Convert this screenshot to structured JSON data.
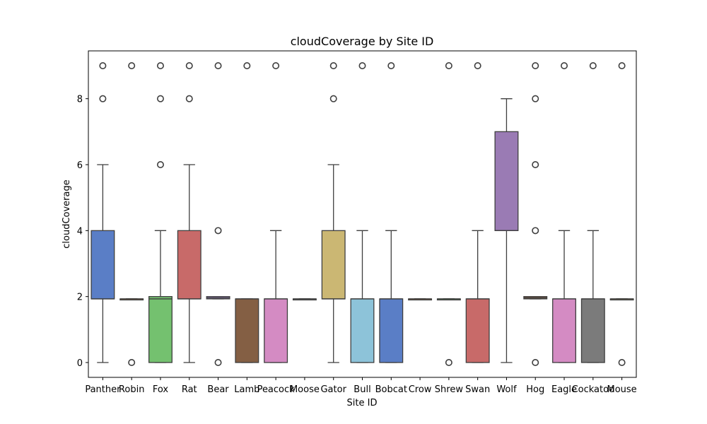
{
  "chart_data": {
    "type": "box",
    "title": "cloudCoverage by Site ID",
    "xlabel": "Site ID",
    "ylabel": "cloudCoverage",
    "ylim": [
      -0.45,
      9.45
    ],
    "yticks": [
      0,
      2,
      4,
      6,
      8
    ],
    "legend": "none",
    "grid": false,
    "categories": [
      "Panther",
      "Robin",
      "Fox",
      "Rat",
      "Bear",
      "Lamb",
      "Peacock",
      "Moose",
      "Gator",
      "Bull",
      "Bobcat",
      "Crow",
      "Shrew",
      "Swan",
      "Wolf",
      "Hog",
      "Eagle",
      "Cockatoo",
      "Mouse"
    ],
    "boxes": [
      {
        "category": "Panther",
        "min": 0,
        "q1": 1.93,
        "median": 1.93,
        "q3": 4,
        "max": 6,
        "outliers": [
          8,
          9
        ],
        "color": "#5a7ec6"
      },
      {
        "category": "Robin",
        "min": 1.93,
        "q1": 1.93,
        "median": 1.93,
        "q3": 1.93,
        "max": 1.93,
        "outliers": [
          0,
          9
        ],
        "color": "#e28c4e"
      },
      {
        "category": "Fox",
        "min": 0,
        "q1": 0,
        "median": 1.93,
        "q3": 2,
        "max": 4,
        "outliers": [
          6,
          8,
          9
        ],
        "color": "#74c16f"
      },
      {
        "category": "Rat",
        "min": 0,
        "q1": 1.93,
        "median": 1.93,
        "q3": 4,
        "max": 6,
        "outliers": [
          8,
          9
        ],
        "color": "#c86a69"
      },
      {
        "category": "Bear",
        "min": 1.93,
        "q1": 1.93,
        "median": 1.96,
        "q3": 2,
        "max": 2,
        "outliers": [
          0,
          4,
          9
        ],
        "color": "#9a80c0"
      },
      {
        "category": "Lamb",
        "min": 0,
        "q1": 0,
        "median": 1.93,
        "q3": 1.93,
        "max": 1.93,
        "outliers": [
          9
        ],
        "color": "#845f44"
      },
      {
        "category": "Peacock",
        "min": 0,
        "q1": 0,
        "median": 1.93,
        "q3": 1.93,
        "max": 4,
        "outliers": [
          9
        ],
        "color": "#d48bc3"
      },
      {
        "category": "Moose",
        "min": 1.93,
        "q1": 1.93,
        "median": 1.93,
        "q3": 1.93,
        "max": 1.93,
        "outliers": [],
        "color": "#8c8c8c"
      },
      {
        "category": "Gator",
        "min": 0,
        "q1": 1.93,
        "median": 1.93,
        "q3": 4,
        "max": 6,
        "outliers": [
          8,
          9
        ],
        "color": "#cbb773"
      },
      {
        "category": "Bull",
        "min": 0,
        "q1": 0,
        "median": 1.93,
        "q3": 1.93,
        "max": 4,
        "outliers": [
          9
        ],
        "color": "#8dc3d9"
      },
      {
        "category": "Bobcat",
        "min": 0,
        "q1": 0,
        "median": 1.93,
        "q3": 1.93,
        "max": 4,
        "outliers": [
          9
        ],
        "color": "#5a7ec6"
      },
      {
        "category": "Crow",
        "min": 1.93,
        "q1": 1.93,
        "median": 1.93,
        "q3": 1.93,
        "max": 1.93,
        "outliers": [],
        "color": "#e28c4e"
      },
      {
        "category": "Shrew",
        "min": 1.93,
        "q1": 1.93,
        "median": 1.93,
        "q3": 1.93,
        "max": 1.93,
        "outliers": [
          0,
          9
        ],
        "color": "#74c16f"
      },
      {
        "category": "Swan",
        "min": 0,
        "q1": 0,
        "median": 1.93,
        "q3": 1.93,
        "max": 4,
        "outliers": [
          9
        ],
        "color": "#c86a69"
      },
      {
        "category": "Wolf",
        "min": 0,
        "q1": 4,
        "median": 4,
        "q3": 7,
        "max": 8,
        "outliers": [],
        "color": "#9a7bb4"
      },
      {
        "category": "Hog",
        "min": 1.93,
        "q1": 1.93,
        "median": 1.96,
        "q3": 2,
        "max": 2,
        "outliers": [
          0,
          4,
          6,
          8,
          9
        ],
        "color": "#845f44"
      },
      {
        "category": "Eagle",
        "min": 0,
        "q1": 0,
        "median": 1.93,
        "q3": 1.93,
        "max": 4,
        "outliers": [
          9
        ],
        "color": "#d48bc3"
      },
      {
        "category": "Cockatoo",
        "min": 0,
        "q1": 0,
        "median": 1.93,
        "q3": 1.93,
        "max": 4,
        "outliers": [
          9
        ],
        "color": "#7b7b7b"
      },
      {
        "category": "Mouse",
        "min": 1.93,
        "q1": 1.93,
        "median": 1.93,
        "q3": 1.93,
        "max": 1.93,
        "outliers": [
          0,
          9
        ],
        "color": "#cbb773"
      }
    ]
  }
}
